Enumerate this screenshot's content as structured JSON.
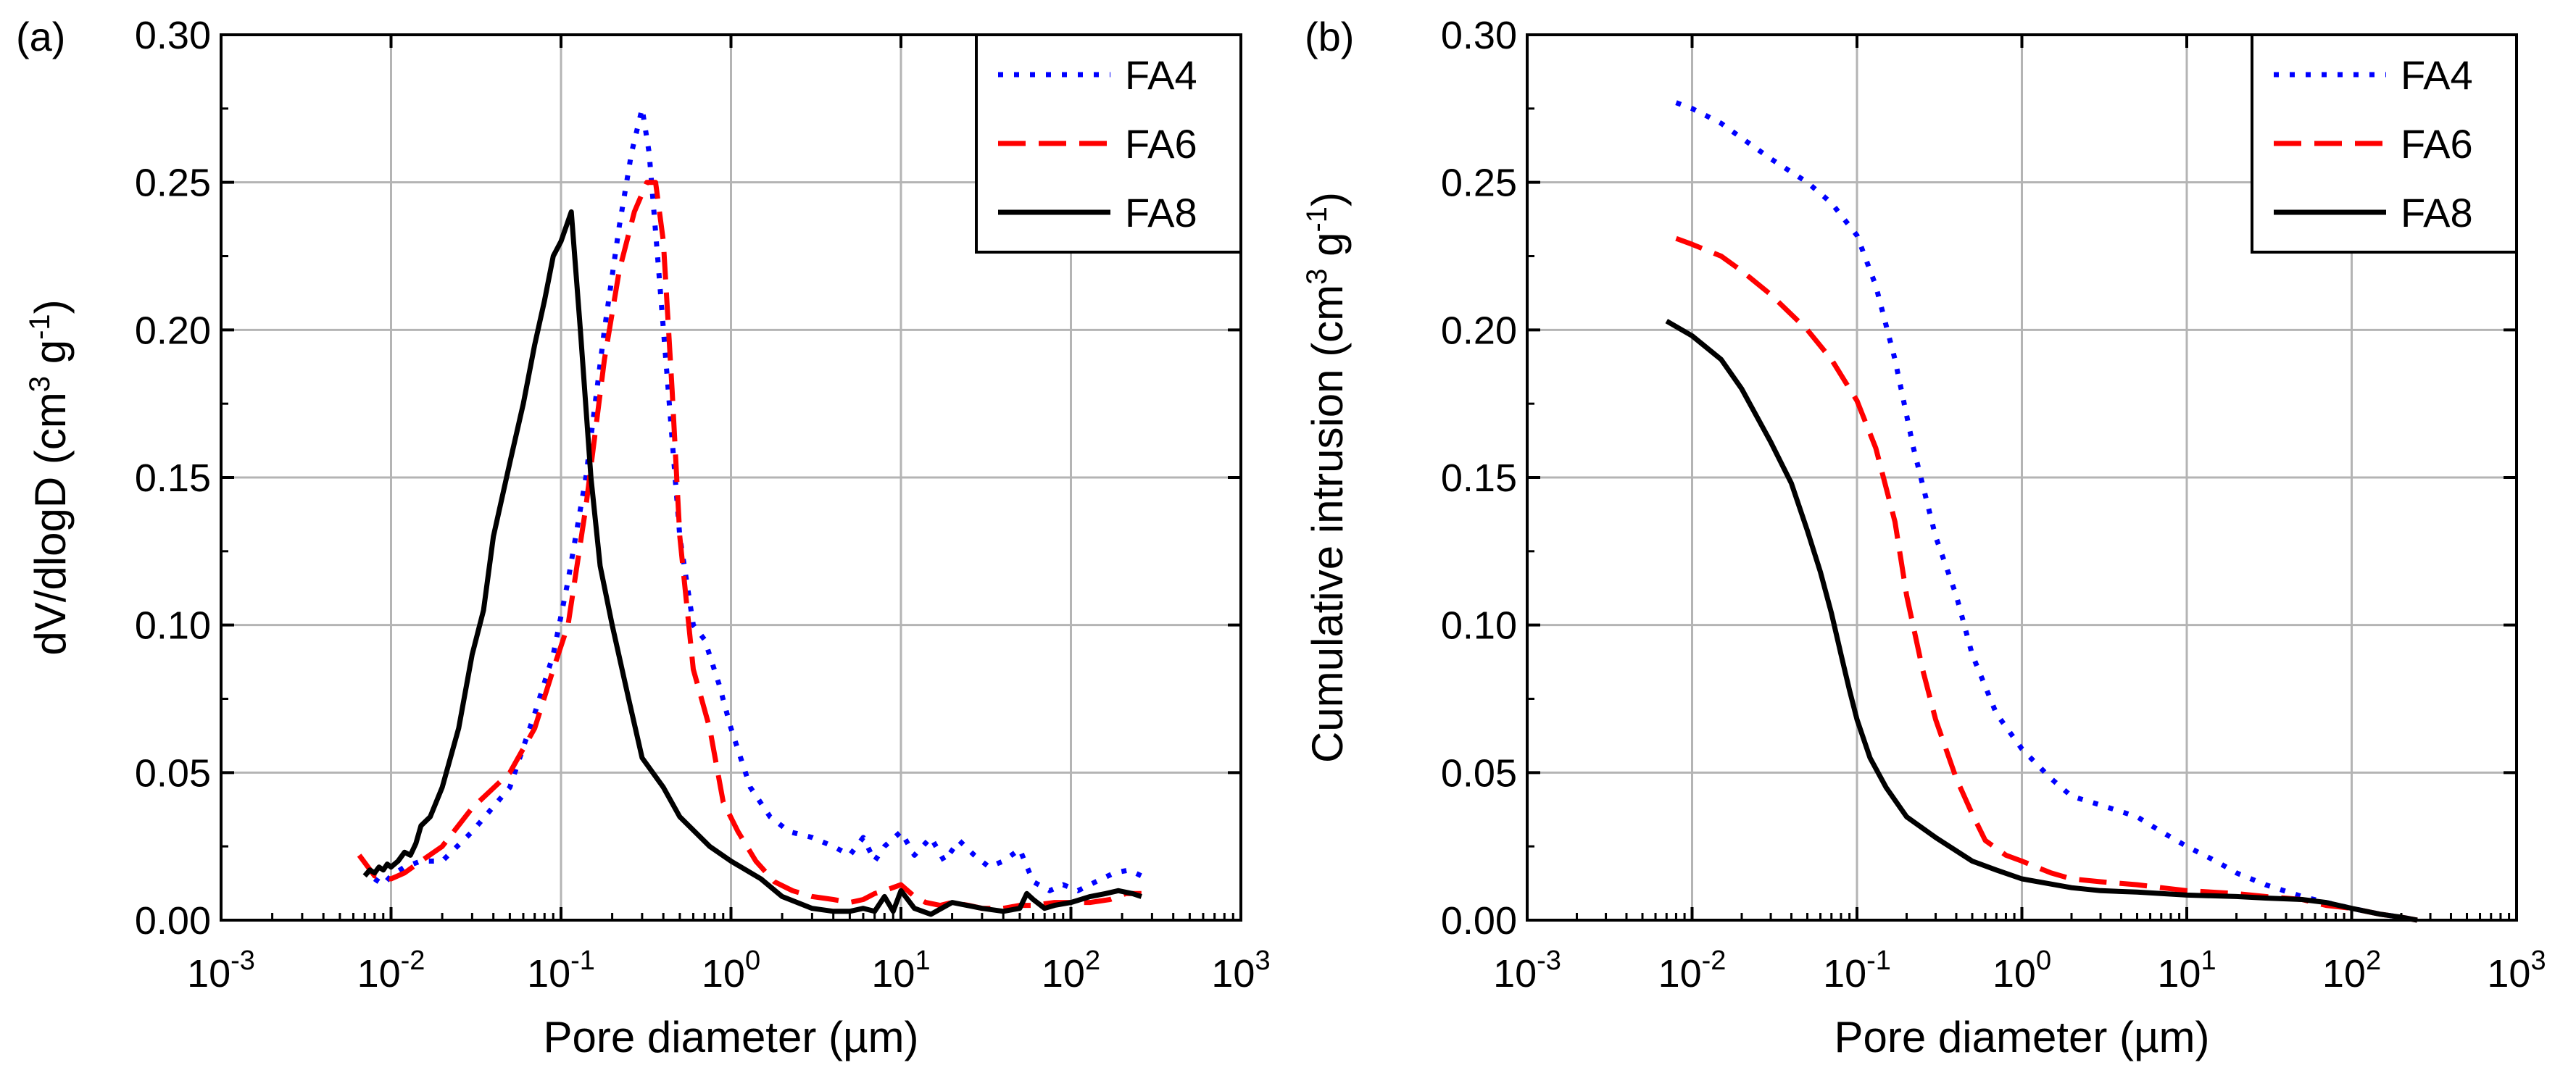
{
  "chart_data": [
    {
      "type": "line",
      "panel_label": "(a)",
      "xlabel": "Pore diameter (µm)",
      "ylabel": "dV/dlogD (cm3 g-1)",
      "ylabel_parts": {
        "main": "dV/dlogD (cm",
        "sup1": "3",
        "mid": " g",
        "sup2": "-1",
        "end": ")"
      },
      "x_scale": "log",
      "xlim": [
        0.001,
        1000
      ],
      "ylim": [
        0,
        0.3
      ],
      "x_ticks": [
        {
          "base": "10",
          "exp": "-3",
          "value": 0.001
        },
        {
          "base": "10",
          "exp": "-2",
          "value": 0.01
        },
        {
          "base": "10",
          "exp": "-1",
          "value": 0.1
        },
        {
          "base": "10",
          "exp": "0",
          "value": 1
        },
        {
          "base": "10",
          "exp": "1",
          "value": 10
        },
        {
          "base": "10",
          "exp": "2",
          "value": 100
        },
        {
          "base": "10",
          "exp": "3",
          "value": 1000
        }
      ],
      "y_ticks": [
        "0.00",
        "0.05",
        "0.10",
        "0.15",
        "0.20",
        "0.25",
        "0.30"
      ],
      "y_tick_values": [
        0,
        0.05,
        0.1,
        0.15,
        0.2,
        0.25,
        0.3
      ],
      "grid": true,
      "legend_position": "top-right",
      "series": [
        {
          "name": "FA4",
          "color": "#0000ff",
          "style": "dotted",
          "x": [
            0.008,
            0.009,
            0.01,
            0.012,
            0.015,
            0.02,
            0.03,
            0.05,
            0.07,
            0.09,
            0.11,
            0.14,
            0.18,
            0.22,
            0.26,
            0.3,
            0.33,
            0.37,
            0.42,
            0.5,
            0.6,
            0.7,
            0.85,
            1,
            1.3,
            1.7,
            2.2,
            3,
            4,
            5,
            6,
            7,
            8,
            10,
            12,
            15,
            18,
            22,
            27,
            33,
            40,
            50,
            60,
            75,
            90,
            110,
            140,
            180,
            220,
            260
          ],
          "y": [
            0.014,
            0.012,
            0.015,
            0.018,
            0.02,
            0.02,
            0.03,
            0.045,
            0.07,
            0.09,
            0.115,
            0.15,
            0.2,
            0.235,
            0.26,
            0.275,
            0.26,
            0.225,
            0.185,
            0.13,
            0.1,
            0.095,
            0.08,
            0.065,
            0.045,
            0.035,
            0.03,
            0.028,
            0.025,
            0.022,
            0.028,
            0.02,
            0.025,
            0.03,
            0.022,
            0.028,
            0.02,
            0.027,
            0.022,
            0.018,
            0.02,
            0.024,
            0.013,
            0.01,
            0.012,
            0.01,
            0.013,
            0.016,
            0.017,
            0.015
          ]
        },
        {
          "name": "FA6",
          "color": "#ff0000",
          "style": "dashed",
          "x": [
            0.0065,
            0.008,
            0.01,
            0.012,
            0.015,
            0.02,
            0.03,
            0.05,
            0.07,
            0.09,
            0.11,
            0.14,
            0.18,
            0.22,
            0.27,
            0.32,
            0.36,
            0.4,
            0.45,
            0.5,
            0.6,
            0.75,
            0.9,
            1.1,
            1.4,
            1.8,
            2.3,
            3,
            4,
            5,
            6,
            7,
            8,
            10,
            12,
            14,
            17,
            20,
            25,
            30,
            40,
            50,
            60,
            80,
            100,
            130,
            170,
            210,
            260
          ],
          "y": [
            0.022,
            0.015,
            0.014,
            0.016,
            0.02,
            0.025,
            0.038,
            0.05,
            0.065,
            0.085,
            0.1,
            0.14,
            0.19,
            0.22,
            0.24,
            0.25,
            0.25,
            0.23,
            0.18,
            0.13,
            0.085,
            0.065,
            0.04,
            0.03,
            0.02,
            0.013,
            0.01,
            0.008,
            0.007,
            0.006,
            0.007,
            0.009,
            0.01,
            0.012,
            0.008,
            0.006,
            0.005,
            0.006,
            0.005,
            0.004,
            0.004,
            0.005,
            0.005,
            0.006,
            0.006,
            0.006,
            0.007,
            0.009,
            0.009
          ]
        },
        {
          "name": "FA8",
          "color": "#000000",
          "style": "solid",
          "x": [
            0.007,
            0.0075,
            0.008,
            0.0085,
            0.009,
            0.0095,
            0.01,
            0.011,
            0.012,
            0.013,
            0.014,
            0.015,
            0.017,
            0.02,
            0.025,
            0.03,
            0.035,
            0.04,
            0.05,
            0.06,
            0.07,
            0.08,
            0.09,
            0.1,
            0.115,
            0.13,
            0.15,
            0.17,
            0.2,
            0.25,
            0.3,
            0.4,
            0.5,
            0.75,
            1,
            1.5,
            2,
            3,
            4,
            5,
            6,
            7,
            8,
            9,
            10,
            12,
            15,
            20,
            30,
            40,
            50,
            55,
            60,
            70,
            80,
            100,
            130,
            160,
            190,
            230,
            260
          ],
          "y": [
            0.015,
            0.017,
            0.016,
            0.018,
            0.017,
            0.019,
            0.018,
            0.02,
            0.023,
            0.022,
            0.026,
            0.032,
            0.035,
            0.045,
            0.065,
            0.09,
            0.105,
            0.13,
            0.155,
            0.175,
            0.195,
            0.21,
            0.225,
            0.23,
            0.24,
            0.2,
            0.15,
            0.12,
            0.1,
            0.075,
            0.055,
            0.045,
            0.035,
            0.025,
            0.02,
            0.014,
            0.008,
            0.004,
            0.003,
            0.003,
            0.004,
            0.003,
            0.008,
            0.003,
            0.01,
            0.004,
            0.002,
            0.006,
            0.004,
            0.003,
            0.004,
            0.009,
            0.007,
            0.004,
            0.005,
            0.006,
            0.008,
            0.009,
            0.01,
            0.009,
            0.008
          ]
        }
      ]
    },
    {
      "type": "line",
      "panel_label": "(b)",
      "xlabel": "Pore diameter (µm)",
      "ylabel": "Cumulative intrusion (cm3 g-1)",
      "ylabel_parts": {
        "main": "Cumulative intrusion (cm",
        "sup1": "3",
        "mid": " g",
        "sup2": "-1",
        "end": ")"
      },
      "x_scale": "log",
      "xlim": [
        0.001,
        1000
      ],
      "ylim": [
        0,
        0.3
      ],
      "x_ticks": [
        {
          "base": "10",
          "exp": "-3",
          "value": 0.001
        },
        {
          "base": "10",
          "exp": "-2",
          "value": 0.01
        },
        {
          "base": "10",
          "exp": "-1",
          "value": 0.1
        },
        {
          "base": "10",
          "exp": "0",
          "value": 1
        },
        {
          "base": "10",
          "exp": "1",
          "value": 10
        },
        {
          "base": "10",
          "exp": "2",
          "value": 100
        },
        {
          "base": "10",
          "exp": "3",
          "value": 1000
        }
      ],
      "y_ticks": [
        "0.00",
        "0.05",
        "0.10",
        "0.15",
        "0.20",
        "0.25",
        "0.30"
      ],
      "y_tick_values": [
        0,
        0.05,
        0.1,
        0.15,
        0.2,
        0.25,
        0.3
      ],
      "grid": true,
      "legend_position": "top-right",
      "series": [
        {
          "name": "FA4",
          "color": "#0000ff",
          "style": "dotted",
          "x": [
            0.008,
            0.01,
            0.015,
            0.02,
            0.03,
            0.05,
            0.07,
            0.1,
            0.13,
            0.17,
            0.22,
            0.3,
            0.4,
            0.5,
            0.7,
            1,
            1.5,
            2,
            3,
            5,
            7,
            10,
            15,
            20,
            30,
            50,
            70,
            100,
            150,
            200,
            250
          ],
          "y": [
            0.277,
            0.275,
            0.27,
            0.265,
            0.258,
            0.25,
            0.243,
            0.232,
            0.215,
            0.19,
            0.16,
            0.13,
            0.11,
            0.09,
            0.07,
            0.058,
            0.048,
            0.042,
            0.039,
            0.035,
            0.03,
            0.025,
            0.02,
            0.016,
            0.012,
            0.008,
            0.006,
            0.004,
            0.002,
            0.001,
            0.0
          ]
        },
        {
          "name": "FA6",
          "color": "#ff0000",
          "style": "dashed",
          "x": [
            0.008,
            0.01,
            0.015,
            0.02,
            0.03,
            0.05,
            0.07,
            0.1,
            0.13,
            0.17,
            0.2,
            0.25,
            0.3,
            0.4,
            0.5,
            0.6,
            0.8,
            1,
            1.5,
            2,
            3,
            5,
            7,
            10,
            20,
            30,
            50,
            70,
            100,
            150,
            200,
            250
          ],
          "y": [
            0.231,
            0.229,
            0.225,
            0.22,
            0.212,
            0.2,
            0.19,
            0.176,
            0.16,
            0.135,
            0.11,
            0.085,
            0.068,
            0.048,
            0.036,
            0.027,
            0.022,
            0.02,
            0.016,
            0.014,
            0.013,
            0.012,
            0.011,
            0.01,
            0.009,
            0.008,
            0.007,
            0.005,
            0.004,
            0.002,
            0.001,
            0.0
          ]
        },
        {
          "name": "FA8",
          "color": "#000000",
          "style": "solid",
          "x": [
            0.007,
            0.01,
            0.015,
            0.02,
            0.03,
            0.04,
            0.05,
            0.06,
            0.07,
            0.08,
            0.09,
            0.1,
            0.12,
            0.15,
            0.2,
            0.3,
            0.5,
            0.7,
            1,
            2,
            3,
            5,
            7,
            10,
            20,
            30,
            50,
            70,
            100,
            150,
            200,
            250
          ],
          "y": [
            0.203,
            0.198,
            0.19,
            0.18,
            0.162,
            0.148,
            0.132,
            0.118,
            0.104,
            0.09,
            0.078,
            0.068,
            0.055,
            0.045,
            0.035,
            0.028,
            0.02,
            0.017,
            0.014,
            0.011,
            0.01,
            0.0095,
            0.009,
            0.0085,
            0.008,
            0.0075,
            0.007,
            0.006,
            0.004,
            0.002,
            0.001,
            0.0
          ]
        }
      ]
    }
  ]
}
